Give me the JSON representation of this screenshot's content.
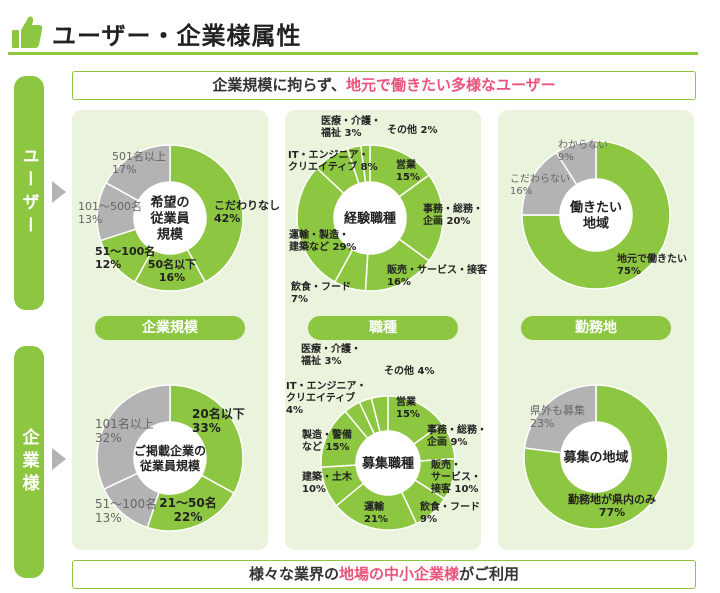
{
  "header": {
    "title": "ユーザー・企業様属性"
  },
  "side": {
    "users": "ユーザー",
    "companies": "企業様"
  },
  "banner_top": {
    "prefix": "企業規模に拘らず、",
    "highlight": "地元で働きたい多様なユーザー"
  },
  "banner_bottom": {
    "prefix": "様々な業界の",
    "highlight": "地場の中小企業様",
    "suffix": "がご利用"
  },
  "section_labels": [
    "企業規模",
    "職種",
    "勤務地"
  ],
  "chart_data": [
    {
      "type": "pie",
      "title": "希望の従業員規模",
      "center": [
        "希望の",
        "従業員",
        "規模"
      ],
      "slices": [
        {
          "label": [
            "こだわりなし",
            "42%"
          ],
          "value": 42,
          "color": "#8dc641",
          "label_color": "#222"
        },
        {
          "label": [
            "50名以下",
            "16%"
          ],
          "value": 16,
          "color": "#8dc641",
          "label_color": "#222"
        },
        {
          "label": [
            "51～100名",
            "12%"
          ],
          "value": 12,
          "color": "#8dc641",
          "label_color": "#222"
        },
        {
          "label": [
            "101～500名",
            "13%"
          ],
          "value": 13,
          "color": "#b3b3b3",
          "label_color": "#666"
        },
        {
          "label": [
            "501名以上",
            "17%"
          ],
          "value": 17,
          "color": "#b3b3b3",
          "label_color": "#666"
        }
      ]
    },
    {
      "type": "pie",
      "title": "経験職種",
      "center": [
        "経験職種"
      ],
      "slices": [
        {
          "label": [
            "営業",
            "15%"
          ],
          "value": 15,
          "color": "#8dc641",
          "label_color": "#222"
        },
        {
          "label": [
            "事務・総務・",
            "企画 20%"
          ],
          "value": 20,
          "color": "#8dc641",
          "label_color": "#222"
        },
        {
          "label": [
            "販売・サービス・接客",
            "16%"
          ],
          "value": 16,
          "color": "#8dc641",
          "label_color": "#222"
        },
        {
          "label": [
            "飲食・フード",
            "7%"
          ],
          "value": 7,
          "color": "#8dc641",
          "label_color": "#222"
        },
        {
          "label": [
            "運輸・製造・",
            "建築など 29%"
          ],
          "value": 29,
          "color": "#8dc641",
          "label_color": "#222"
        },
        {
          "label": [
            "IT・エンジニア・",
            "クリエイティブ 8%"
          ],
          "value": 8,
          "color": "#8dc641",
          "label_color": "#222"
        },
        {
          "label": [
            "医療・介護・",
            "福祉 3%"
          ],
          "value": 3,
          "color": "#8dc641",
          "label_color": "#222"
        },
        {
          "label": [
            "その他 2%"
          ],
          "value": 2,
          "color": "#8dc641",
          "label_color": "#222"
        }
      ]
    },
    {
      "type": "pie",
      "title": "働きたい地域",
      "center": [
        "働きたい",
        "地域"
      ],
      "slices": [
        {
          "label": [
            "地元で働きたい",
            "75%"
          ],
          "value": 75,
          "color": "#8dc641",
          "label_color": "#222"
        },
        {
          "label": [
            "こだわらない",
            "16%"
          ],
          "value": 16,
          "color": "#b3b3b3",
          "label_color": "#666"
        },
        {
          "label": [
            "わからない",
            "9%"
          ],
          "value": 9,
          "color": "#b3b3b3",
          "label_color": "#666"
        }
      ]
    },
    {
      "type": "pie",
      "title": "ご掲載企業の従業員規模",
      "center": [
        "ご掲載企業の",
        "従業員規模"
      ],
      "slices": [
        {
          "label": [
            "20名以下",
            "33%"
          ],
          "value": 33,
          "color": "#8dc641",
          "label_color": "#222"
        },
        {
          "label": [
            "21～50名",
            "22%"
          ],
          "value": 22,
          "color": "#8dc641",
          "label_color": "#222"
        },
        {
          "label": [
            "51～100名",
            "13%"
          ],
          "value": 13,
          "color": "#b3b3b3",
          "label_color": "#666"
        },
        {
          "label": [
            "101名以上",
            "32%"
          ],
          "value": 32,
          "color": "#b3b3b3",
          "label_color": "#666"
        }
      ]
    },
    {
      "type": "pie",
      "title": "募集職種",
      "center": [
        "募集職種"
      ],
      "slices": [
        {
          "label": [
            "営業",
            "15%"
          ],
          "value": 15,
          "color": "#8dc641",
          "label_color": "#222"
        },
        {
          "label": [
            "事務・総務・",
            "企画 9%"
          ],
          "value": 9,
          "color": "#8dc641",
          "label_color": "#222"
        },
        {
          "label": [
            "販売・",
            "サービス・",
            "接客 10%"
          ],
          "value": 10,
          "color": "#8dc641",
          "label_color": "#222"
        },
        {
          "label": [
            "飲食・フード",
            "9%"
          ],
          "value": 9,
          "color": "#8dc641",
          "label_color": "#222"
        },
        {
          "label": [
            "運輸",
            "21%"
          ],
          "value": 21,
          "color": "#8dc641",
          "label_color": "#222"
        },
        {
          "label": [
            "建築・土木",
            "10%"
          ],
          "value": 10,
          "color": "#8dc641",
          "label_color": "#222"
        },
        {
          "label": [
            "製造・警備",
            "など 15%"
          ],
          "value": 15,
          "color": "#8dc641",
          "label_color": "#222"
        },
        {
          "label": [
            "IT・エンジニア・",
            "クリエイティブ",
            "4%"
          ],
          "value": 4,
          "color": "#8dc641",
          "label_color": "#222"
        },
        {
          "label": [
            "医療・介護・",
            "福祉 3%"
          ],
          "value": 3,
          "color": "#8dc641",
          "label_color": "#222"
        },
        {
          "label": [
            "その他 4%"
          ],
          "value": 4,
          "color": "#8dc641",
          "label_color": "#222"
        }
      ]
    },
    {
      "type": "pie",
      "title": "募集の地域",
      "center": [
        "募集の地域"
      ],
      "slices": [
        {
          "label": [
            "勤務地が県内のみ",
            "77%"
          ],
          "value": 77,
          "color": "#8dc641",
          "label_color": "#222"
        },
        {
          "label": [
            "県外も募集",
            "23%"
          ],
          "value": 23,
          "color": "#b3b3b3",
          "label_color": "#666"
        }
      ]
    }
  ]
}
